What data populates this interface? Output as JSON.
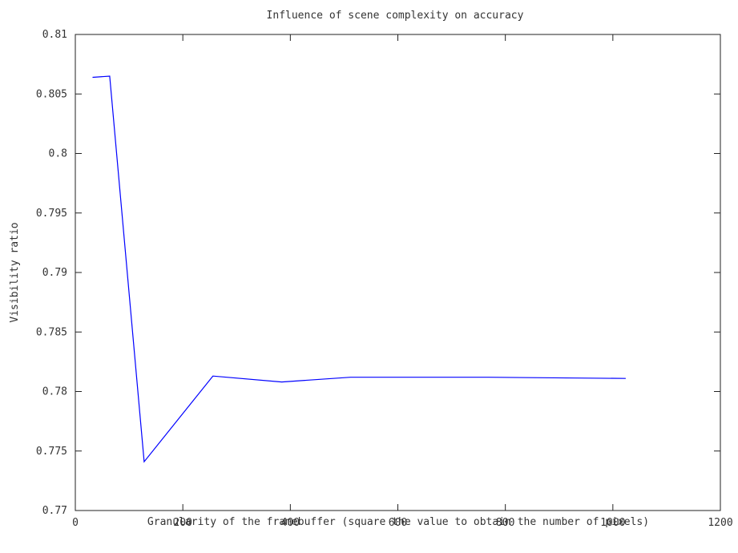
{
  "chart_data": {
    "type": "line",
    "title": "Influence of scene complexity on accuracy",
    "xlabel": "Granularity of the framebuffer (square the value to obtain the number of pixels)",
    "ylabel": "Visibility ratio",
    "xlim": [
      0,
      1200
    ],
    "ylim": [
      0.77,
      0.81
    ],
    "x_ticks": [
      0,
      200,
      400,
      600,
      800,
      1000,
      1200
    ],
    "x_tick_labels": [
      "0",
      "200",
      "400",
      "600",
      "800",
      "1000",
      "1200"
    ],
    "y_ticks": [
      0.77,
      0.775,
      0.78,
      0.785,
      0.79,
      0.795,
      0.8,
      0.805,
      0.81
    ],
    "y_tick_labels": [
      "0.77",
      "0.775",
      "0.78",
      "0.785",
      "0.79",
      "0.795",
      "0.8",
      "0.805",
      "0.81"
    ],
    "grid": false,
    "legend": "none",
    "series": [
      {
        "color": "#0000ff",
        "x": [
          32,
          64,
          128,
          256,
          384,
          512,
          768,
          1024
        ],
        "y": [
          0.8064,
          0.8065,
          0.7741,
          0.7813,
          0.7808,
          0.7812,
          0.7812,
          0.7811
        ]
      }
    ]
  }
}
